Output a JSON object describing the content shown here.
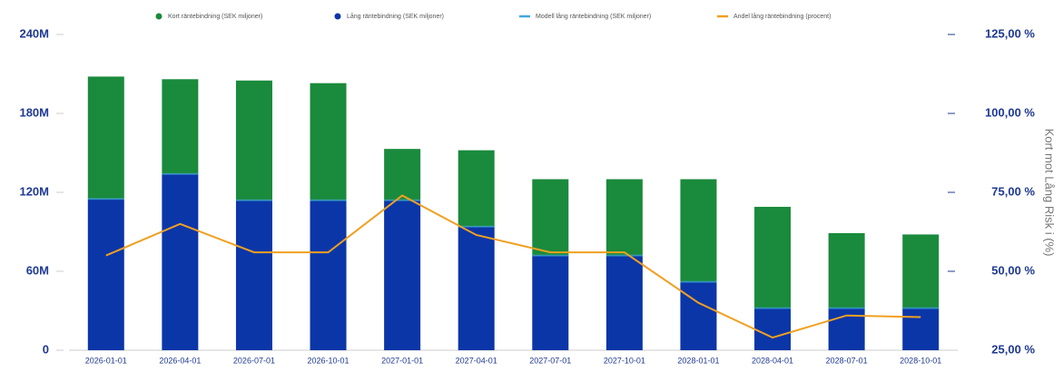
{
  "chart_data": {
    "type": "stacked-bar-line",
    "categories": [
      "2026-01-01",
      "2026-04-01",
      "2026-07-01",
      "2026-10-01",
      "2027-01-01",
      "2027-04-01",
      "2027-07-01",
      "2027-10-01",
      "2028-01-01",
      "2028-04-01",
      "2028-07-01",
      "2028-10-01"
    ],
    "y2_label": "Kort mot Lång Risk i (%)",
    "series": [
      {
        "name": "Kort räntebindning (SEK miljoner)",
        "kind": "bar",
        "color": "#1a8a3c",
        "values": [
          93000000,
          72000000,
          91000000,
          89000000,
          39000000,
          58000000,
          58000000,
          58000000,
          78000000,
          77000000,
          57000000,
          56000000
        ]
      },
      {
        "name": "Lång räntebindning (SEK miljoner)",
        "kind": "bar",
        "color": "#0b36a8",
        "values": [
          115000000,
          134000000,
          114000000,
          114000000,
          114000000,
          94000000,
          72000000,
          72000000,
          52000000,
          32000000,
          32000000,
          32000000
        ]
      },
      {
        "name": "Modell lång räntebindning (SEK miljoner)",
        "kind": "level",
        "color": "#3fa9e0",
        "values": [
          115000000,
          134000000,
          114000000,
          114000000,
          114000000,
          94000000,
          72000000,
          72000000,
          52000000,
          32000000,
          32000000,
          32000000
        ]
      },
      {
        "name": "Andel lång räntebindning (procent)",
        "kind": "line",
        "axis": "y2",
        "color": "#f0a020",
        "values": [
          55,
          65,
          56,
          56,
          74,
          61.5,
          56,
          56,
          40,
          29,
          36,
          35.5
        ]
      }
    ],
    "ylim": [
      0,
      240000000
    ],
    "yticks": [
      {
        "value": 0,
        "label": "0"
      },
      {
        "value": 60000000,
        "label": "60M"
      },
      {
        "value": 120000000,
        "label": "120M"
      },
      {
        "value": 180000000,
        "label": "180M"
      },
      {
        "value": 240000000,
        "label": "240M"
      }
    ],
    "y2lim": [
      25,
      125
    ],
    "y2ticks": [
      {
        "value": 25,
        "label": "25,00 %"
      },
      {
        "value": 50,
        "label": "50,00 %"
      },
      {
        "value": 75,
        "label": "75,00 %"
      },
      {
        "value": 100,
        "label": "100,00 %"
      },
      {
        "value": 125,
        "label": "125,00 %"
      }
    ],
    "legend": "top"
  }
}
